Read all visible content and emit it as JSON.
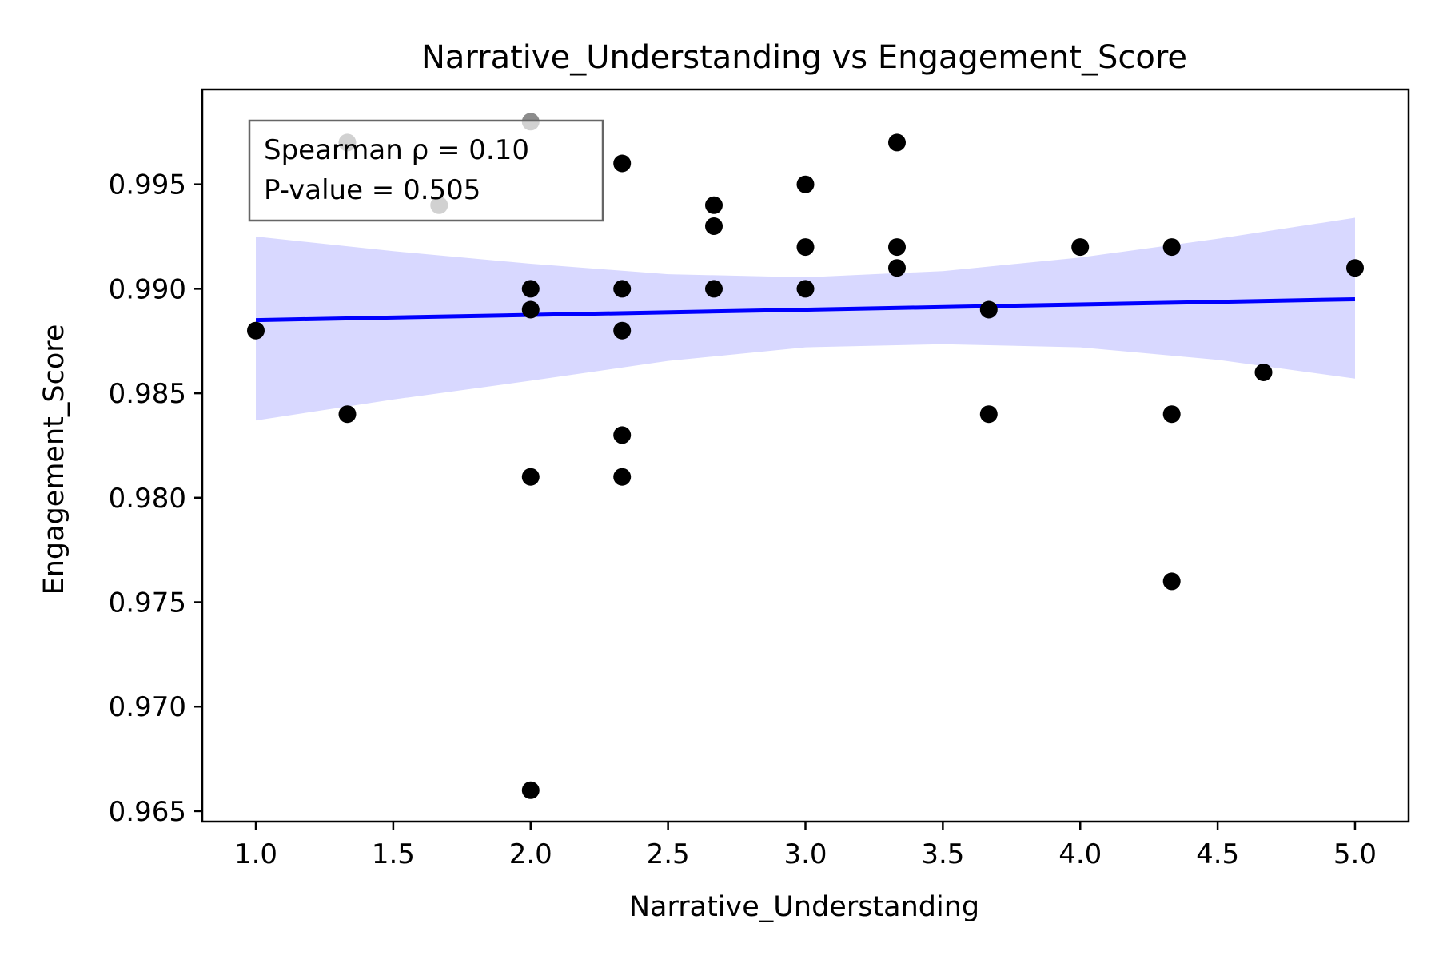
{
  "chart_data": {
    "type": "scatter",
    "title": "Narrative_Understanding vs Engagement_Score",
    "xlabel": "Narrative_Understanding",
    "ylabel": "Engagement_Score",
    "xlim": [
      0.805,
      5.195
    ],
    "ylim": [
      0.9645,
      0.99954
    ],
    "xticks": [
      1.0,
      1.5,
      2.0,
      2.5,
      3.0,
      3.5,
      4.0,
      4.5,
      5.0
    ],
    "xtick_labels": [
      "1.0",
      "1.5",
      "2.0",
      "2.5",
      "3.0",
      "3.5",
      "4.0",
      "4.5",
      "5.0"
    ],
    "yticks": [
      0.965,
      0.97,
      0.975,
      0.98,
      0.985,
      0.99,
      0.995
    ],
    "ytick_labels": [
      "0.965",
      "0.970",
      "0.975",
      "0.980",
      "0.985",
      "0.990",
      "0.995"
    ],
    "grid": false,
    "points": {
      "x": [
        1.0,
        1.333,
        1.333,
        1.667,
        2.0,
        2.0,
        2.0,
        2.0,
        2.0,
        2.333,
        2.333,
        2.333,
        2.333,
        2.333,
        2.667,
        2.667,
        2.667,
        3.0,
        3.0,
        3.0,
        3.333,
        3.333,
        3.333,
        3.667,
        3.667,
        4.0,
        4.333,
        4.333,
        4.333,
        4.667,
        5.0
      ],
      "y": [
        0.988,
        0.997,
        0.984,
        0.994,
        0.998,
        0.99,
        0.989,
        0.981,
        0.966,
        0.996,
        0.99,
        0.988,
        0.983,
        0.981,
        0.994,
        0.993,
        0.99,
        0.995,
        0.992,
        0.99,
        0.997,
        0.992,
        0.991,
        0.989,
        0.984,
        0.992,
        0.992,
        0.984,
        0.976,
        0.986,
        0.991
      ],
      "color": "#000000",
      "faded_color": "#8c8c8c"
    },
    "regression": {
      "x": [
        1.0,
        5.0
      ],
      "y": [
        0.9885,
        0.9895
      ],
      "color": "#0000ff"
    },
    "confidence_band": {
      "x": [
        1.0,
        1.5,
        2.0,
        2.5,
        3.0,
        3.5,
        4.0,
        4.5,
        5.0
      ],
      "upper": [
        0.9925,
        0.9918,
        0.9912,
        0.9907,
        0.99055,
        0.99085,
        0.9915,
        0.9924,
        0.9934
      ],
      "lower": [
        0.9837,
        0.9847,
        0.9856,
        0.98655,
        0.9872,
        0.98735,
        0.9872,
        0.9866,
        0.9857
      ],
      "color": "#d8d8ff"
    },
    "annotation": {
      "lines": [
        "Spearman ρ = 0.10",
        "P-value = 0.505"
      ],
      "placement": "top-left"
    }
  }
}
